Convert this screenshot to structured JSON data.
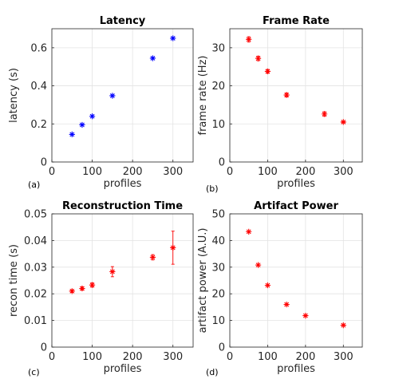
{
  "chart_data": [
    {
      "type": "scatter",
      "title": "Latency",
      "xlabel": "profiles",
      "ylabel": "latency (s)",
      "panel_label": "(a)",
      "xlim": [
        0,
        350
      ],
      "ylim": [
        0,
        0.7
      ],
      "xticks": [
        0,
        100,
        200,
        300
      ],
      "yticks": [
        0,
        0.2,
        0.4,
        0.6
      ],
      "ytick_labels": [
        "0",
        "0.2",
        "0.4",
        "0.6"
      ],
      "grid": true,
      "marker": "asterisk",
      "color": "#0000ff",
      "series": [
        {
          "x": [
            50,
            75,
            100,
            150,
            250,
            300
          ],
          "y": [
            0.145,
            0.195,
            0.24,
            0.348,
            0.545,
            0.65
          ]
        }
      ]
    },
    {
      "type": "scatter",
      "title": "Frame Rate",
      "xlabel": "profiles",
      "ylabel": "frame rate (Hz)",
      "panel_label": "(b)",
      "xlim": [
        0,
        350
      ],
      "ylim": [
        0,
        35
      ],
      "xticks": [
        0,
        100,
        200,
        300
      ],
      "yticks": [
        0,
        10,
        20,
        30
      ],
      "ytick_labels": [
        "0",
        "10",
        "20",
        "30"
      ],
      "grid": true,
      "marker": "asterisk",
      "color": "#ff0000",
      "series": [
        {
          "x": [
            50,
            75,
            100,
            150,
            250,
            300
          ],
          "y": [
            32.2,
            27.2,
            23.8,
            17.6,
            12.6,
            10.5
          ],
          "err": [
            0.7,
            0.6,
            0.5,
            0.5,
            0.6,
            0.2
          ]
        }
      ]
    },
    {
      "type": "scatter",
      "title": "Reconstruction Time",
      "xlabel": "profiles",
      "ylabel": "recon time (s)",
      "panel_label": "(c)",
      "xlim": [
        0,
        350
      ],
      "ylim": [
        0,
        0.05
      ],
      "xticks": [
        0,
        100,
        200,
        300
      ],
      "yticks": [
        0,
        0.01,
        0.02,
        0.03,
        0.04,
        0.05
      ],
      "ytick_labels": [
        "0",
        "0.01",
        "0.02",
        "0.03",
        "0.04",
        "0.05"
      ],
      "grid": true,
      "marker": "asterisk",
      "color": "#ff0000",
      "series": [
        {
          "x": [
            50,
            75,
            100,
            150,
            250,
            300
          ],
          "y": [
            0.021,
            0.022,
            0.0233,
            0.0283,
            0.0337,
            0.0373
          ],
          "err": [
            0.0005,
            0.0006,
            0.0008,
            0.0019,
            0.001,
            0.0062
          ]
        }
      ]
    },
    {
      "type": "scatter",
      "title": "Artifact Power",
      "xlabel": "profiles",
      "ylabel": "artifact power (A.U.)",
      "panel_label": "(d)",
      "xlim": [
        0,
        350
      ],
      "ylim": [
        0,
        50
      ],
      "xticks": [
        0,
        100,
        200,
        300
      ],
      "yticks": [
        0,
        10,
        20,
        30,
        40,
        50
      ],
      "ytick_labels": [
        "0",
        "10",
        "20",
        "30",
        "40",
        "50"
      ],
      "grid": true,
      "marker": "asterisk",
      "color": "#ff0000",
      "series": [
        {
          "x": [
            50,
            75,
            100,
            150,
            200,
            300
          ],
          "y": [
            43.3,
            30.8,
            23.2,
            16.0,
            11.8,
            8.2
          ]
        }
      ]
    }
  ]
}
